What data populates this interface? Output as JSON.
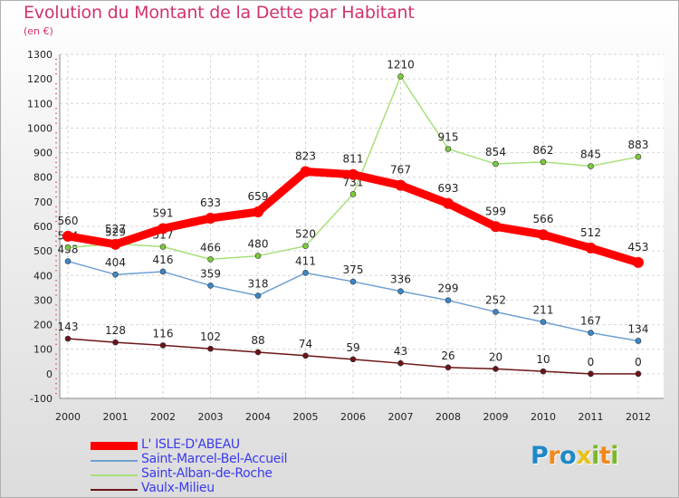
{
  "page": {
    "title": "Evolution du Montant de la Dette par Habitant",
    "subtitle": "(en €)"
  },
  "logo": {
    "letters": [
      {
        "ch": "P",
        "color": "#1e88c8"
      },
      {
        "ch": "r",
        "color": "#f08a1c"
      },
      {
        "ch": "o",
        "color": "#1e88c8"
      },
      {
        "ch": "x",
        "color": "#e8c21a"
      },
      {
        "ch": "i",
        "color": "#7ab829"
      },
      {
        "ch": "t",
        "color": "#f08a1c"
      },
      {
        "ch": "i",
        "color": "#7ab829"
      }
    ]
  },
  "chart_data": {
    "type": "line",
    "x": [
      "2000",
      "2001",
      "2002",
      "2003",
      "2004",
      "2005",
      "2006",
      "2007",
      "2008",
      "2009",
      "2010",
      "2011",
      "2012"
    ],
    "ylim": [
      -100,
      1300
    ],
    "yticks": [
      -100,
      0,
      100,
      200,
      300,
      400,
      500,
      600,
      700,
      800,
      900,
      1000,
      1100,
      1200,
      1300
    ],
    "grid": true,
    "legend_position": "bottom-left",
    "series": [
      {
        "name": "Vaulx-Milieu",
        "color": "#6b1418",
        "dot": "#6b1418",
        "values": [
          143,
          128,
          116,
          102,
          88,
          74,
          59,
          43,
          26,
          20,
          10,
          0,
          0
        ]
      },
      {
        "name": "Saint-Marcel-Bel-Accueil",
        "color": "#6fa0d2",
        "dot": "#3a88cc",
        "values": [
          458,
          404,
          416,
          359,
          318,
          411,
          375,
          336,
          299,
          252,
          211,
          167,
          134
        ]
      },
      {
        "name": "Saint-Alban-de-Roche",
        "color": "#a8e07a",
        "dot": "#7acc3a",
        "values": [
          514,
          529,
          517,
          466,
          480,
          520,
          731,
          1210,
          915,
          854,
          862,
          845,
          883
        ]
      },
      {
        "name": "L' ISLE-D'ABEAU",
        "color": "#ff0000",
        "dot": "#ff0000",
        "values": [
          560,
          527,
          591,
          633,
          659,
          823,
          811,
          767,
          693,
          599,
          566,
          512,
          453
        ]
      }
    ],
    "legend_order": [
      3,
      1,
      2,
      0
    ]
  }
}
